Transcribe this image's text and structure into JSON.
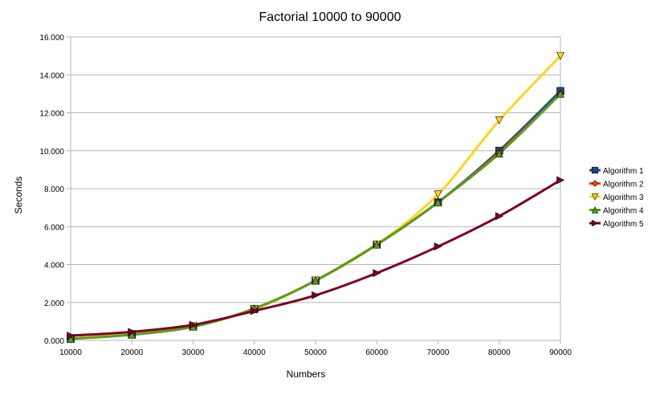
{
  "chart_data": {
    "type": "line",
    "title": "Factorial 10000 to 90000",
    "xlabel": "Numbers",
    "ylabel": "Seconds",
    "x": [
      10000,
      20000,
      30000,
      40000,
      50000,
      60000,
      70000,
      80000,
      90000
    ],
    "x_tick_labels": [
      "10000",
      "20000",
      "30000",
      "40000",
      "50000",
      "60000",
      "70000",
      "80000",
      "90000"
    ],
    "ylim": [
      0,
      16
    ],
    "y_ticks": [
      0,
      2,
      4,
      6,
      8,
      10,
      12,
      14,
      16
    ],
    "y_tick_labels": [
      "0.000",
      "2.000",
      "4.000",
      "6.000",
      "8.000",
      "10.000",
      "12.000",
      "14.000",
      "16.000"
    ],
    "grid": "horizontal",
    "legend_position": "right",
    "series": [
      {
        "name": "Algorithm 1",
        "color": "#1f4e79",
        "marker": "square",
        "values": [
          0.1,
          0.33,
          0.75,
          1.65,
          3.15,
          5.05,
          7.28,
          10.0,
          13.15
        ]
      },
      {
        "name": "Algorithm 2",
        "color": "#ff420e",
        "marker": "diamond",
        "values": [
          0.1,
          0.33,
          0.75,
          1.65,
          3.15,
          5.05,
          7.28,
          9.9,
          13.0
        ]
      },
      {
        "name": "Algorithm 3",
        "color": "#ffd320",
        "marker": "triangle-down",
        "values": [
          0.1,
          0.33,
          0.75,
          1.65,
          3.15,
          5.05,
          7.7,
          11.6,
          15.0
        ]
      },
      {
        "name": "Algorithm 4",
        "color": "#579d1c",
        "marker": "triangle-up",
        "values": [
          0.08,
          0.3,
          0.72,
          1.68,
          3.15,
          5.05,
          7.28,
          9.85,
          13.0
        ]
      },
      {
        "name": "Algorithm 5",
        "color": "#7e0021",
        "marker": "triangle-right",
        "values": [
          0.25,
          0.45,
          0.82,
          1.55,
          2.38,
          3.55,
          4.95,
          6.55,
          8.45
        ]
      }
    ]
  }
}
